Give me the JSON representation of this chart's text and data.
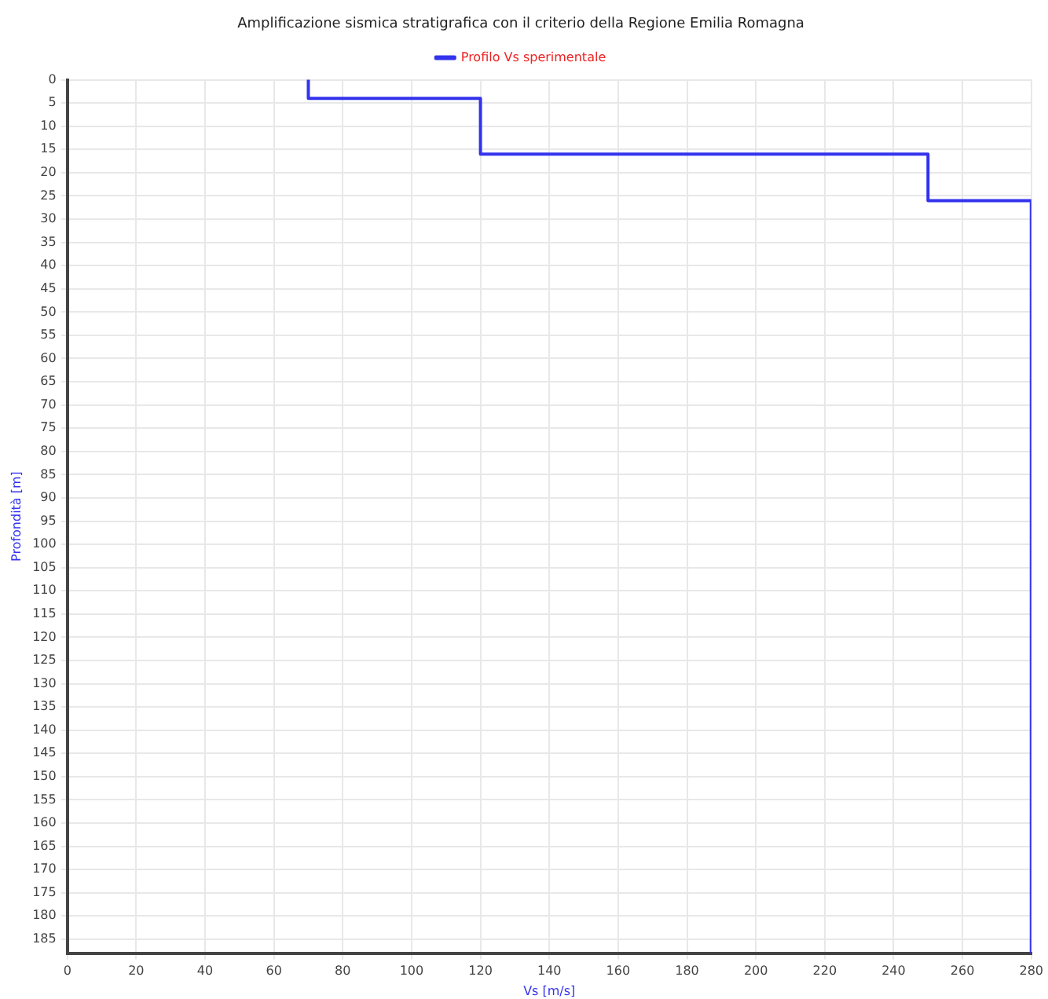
{
  "chart_data": {
    "type": "line",
    "title": "Amplificazione sismica stratigrafica con il criterio della Regione Emilia Romagna",
    "xlabel": "Vs [m/s]",
    "ylabel": "Profondità [m]",
    "x": [
      70,
      70,
      120,
      120,
      250,
      250,
      280,
      280
    ],
    "series": [
      {
        "name": "Profilo Vs sperimentale",
        "color": "#3333ee",
        "values": [
          0,
          4,
          4,
          16,
          16,
          26,
          26,
          188
        ]
      }
    ],
    "xlim": [
      0,
      280
    ],
    "xticks": [
      0,
      20,
      40,
      60,
      80,
      100,
      120,
      140,
      160,
      180,
      200,
      220,
      240,
      260,
      280
    ],
    "ylim": [
      188,
      0
    ],
    "yticks": [
      0,
      5,
      10,
      15,
      20,
      25,
      30,
      35,
      40,
      45,
      50,
      55,
      60,
      65,
      70,
      75,
      80,
      85,
      90,
      95,
      100,
      105,
      110,
      115,
      120,
      125,
      130,
      135,
      140,
      145,
      150,
      155,
      160,
      165,
      170,
      175,
      180,
      185
    ],
    "grid": true,
    "legend": "top",
    "marker": "none",
    "line_style": "solid"
  }
}
